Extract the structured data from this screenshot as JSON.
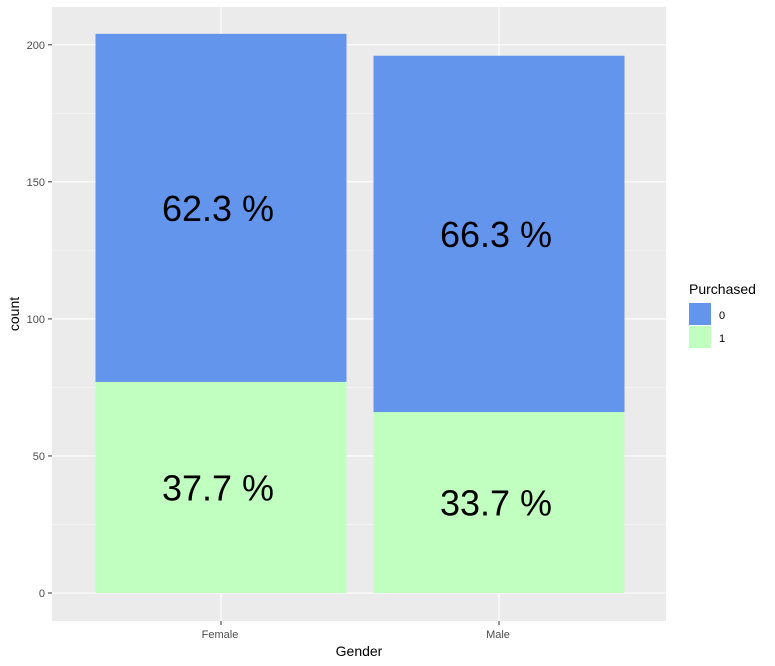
{
  "chart_data": {
    "type": "bar",
    "stacked": true,
    "categories": [
      "Female",
      "Male"
    ],
    "series": [
      {
        "name": "0",
        "values": [
          127,
          130
        ],
        "color": "#6495ED",
        "labels": [
          "62.3 %",
          "66.3 %"
        ]
      },
      {
        "name": "1",
        "values": [
          77,
          66
        ],
        "color": "#C1FFC1",
        "labels": [
          "37.7 %",
          "33.7 %"
        ]
      }
    ],
    "xlabel": "Gender",
    "ylabel": "count",
    "yticks": [
      0,
      50,
      100,
      150,
      200
    ],
    "ylim": [
      0,
      204
    ],
    "grid": true,
    "panel_background": "#EBEBEB",
    "legend": {
      "title": "Purchased",
      "position": "right"
    }
  }
}
